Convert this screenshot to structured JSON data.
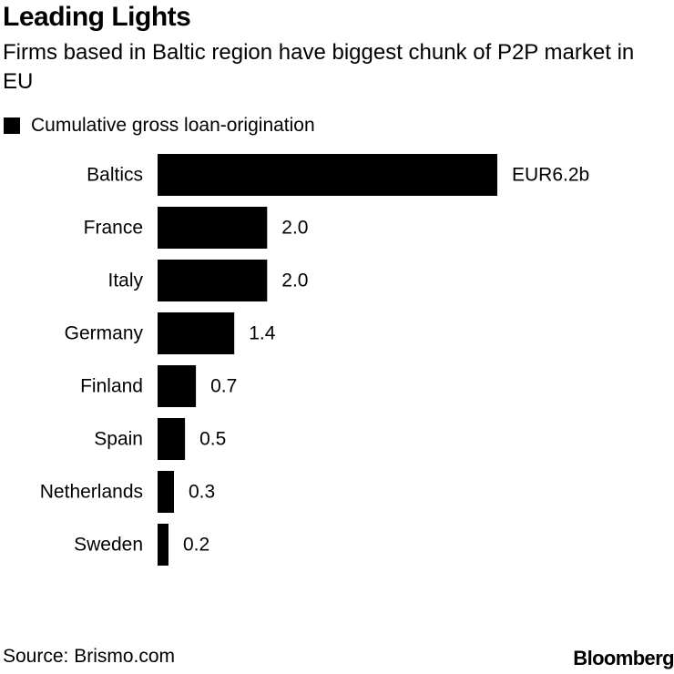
{
  "header": {
    "title": "Leading Lights",
    "subtitle": "Firms based in Baltic region have biggest chunk of P2P market in EU"
  },
  "legend": {
    "label": "Cumulative gross loan-origination",
    "color": "#000000"
  },
  "chart_data": {
    "type": "bar",
    "orientation": "horizontal",
    "title": "Leading Lights",
    "subtitle": "Firms based in Baltic region have biggest chunk of P2P market in EU",
    "xlabel": "",
    "ylabel": "",
    "unit": "EUR billion",
    "categories": [
      "Baltics",
      "France",
      "Italy",
      "Germany",
      "Finland",
      "Spain",
      "Netherlands",
      "Sweden"
    ],
    "values": [
      6.2,
      2.0,
      2.0,
      1.4,
      0.7,
      0.5,
      0.3,
      0.2
    ],
    "value_labels": [
      "EUR6.2b",
      "2.0",
      "2.0",
      "1.4",
      "0.7",
      "0.5",
      "0.3",
      "0.2"
    ],
    "series": [
      {
        "name": "Cumulative gross loan-origination",
        "values": [
          6.2,
          2.0,
          2.0,
          1.4,
          0.7,
          0.5,
          0.3,
          0.2
        ],
        "color": "#000000"
      }
    ],
    "xlim": [
      0,
      6.2
    ],
    "grid": false,
    "legend_position": "top-left"
  },
  "footer": {
    "source": "Source: Brismo.com",
    "brand": "Bloomberg"
  }
}
